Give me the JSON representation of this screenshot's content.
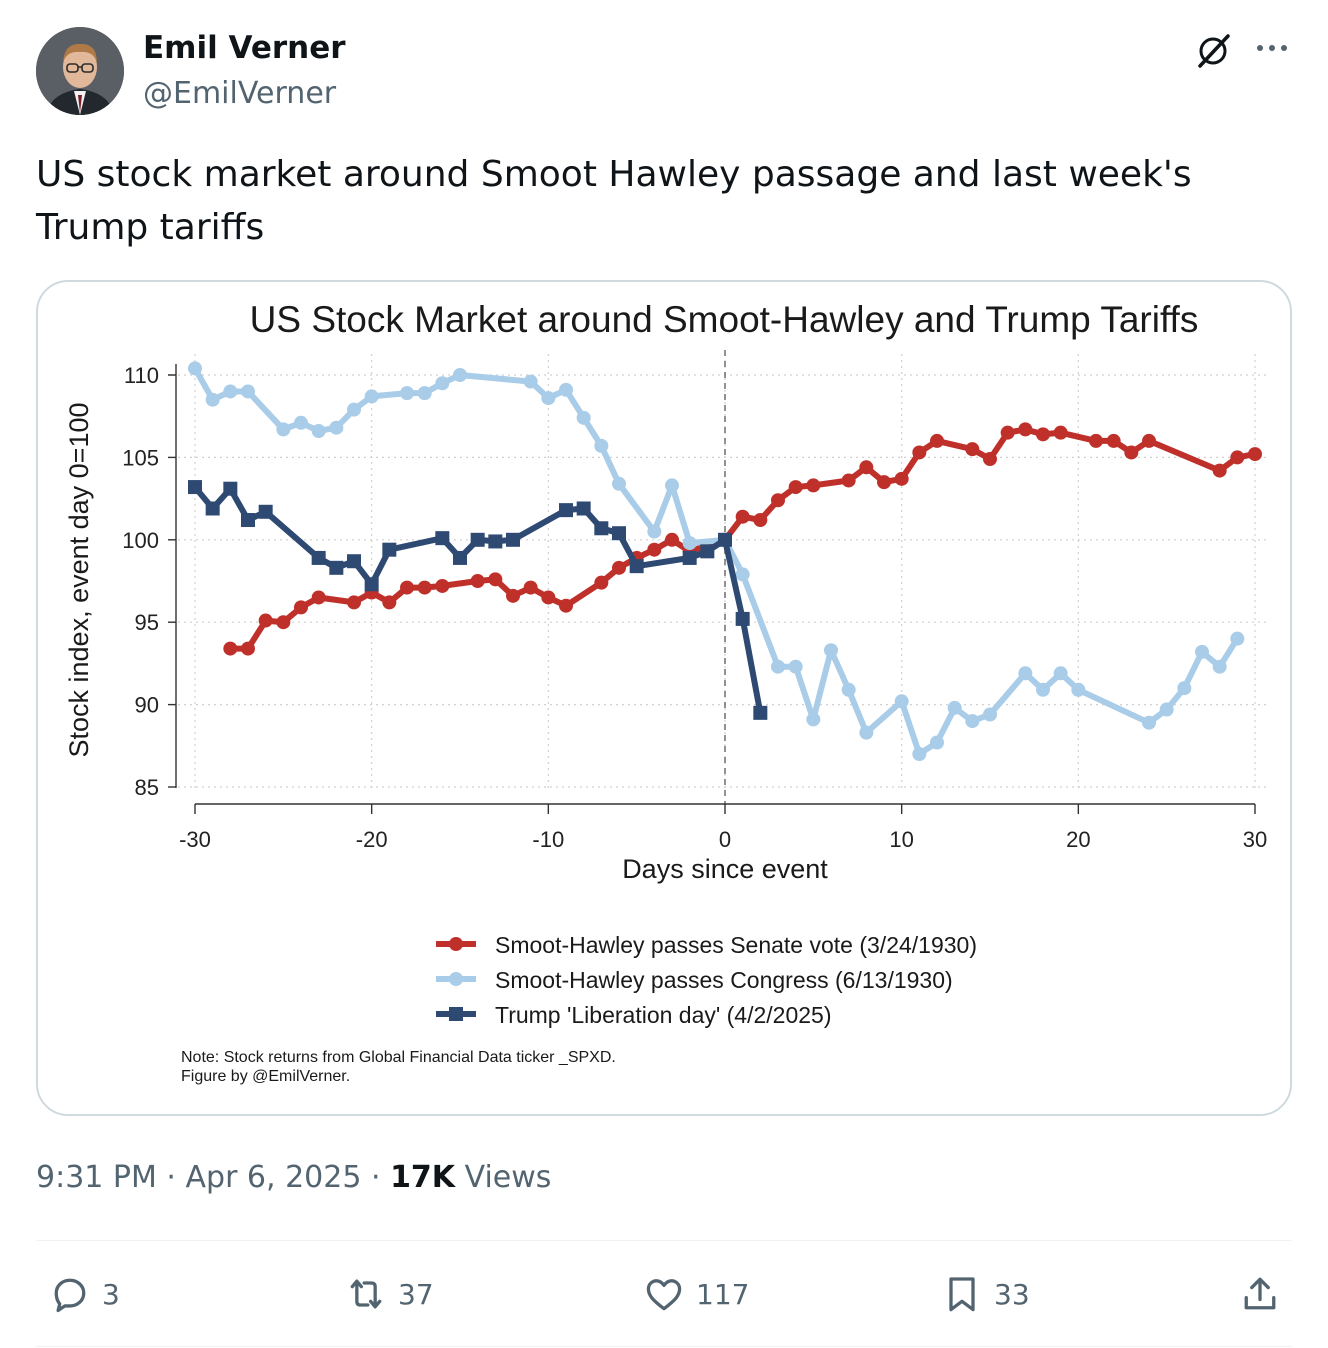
{
  "author": {
    "name": "Emil Verner",
    "handle": "@EmilVerner"
  },
  "tweet": {
    "text": "US stock market around Smoot Hawley passage and last week's Trump tariffs"
  },
  "meta": {
    "time": "9:31 PM",
    "sep1": " · ",
    "date": "Apr 6, 2025",
    "sep2": " · ",
    "views_count": "17K",
    "views_label": " Views"
  },
  "actions": {
    "replies": "3",
    "reposts": "37",
    "likes": "117",
    "bookmarks": "33"
  },
  "icons": [
    "grok-icon",
    "more-icon",
    "reply-icon",
    "repost-icon",
    "like-icon",
    "bookmark-icon",
    "share-icon"
  ],
  "colors": {
    "red_series": "#c0302b",
    "light_blue_series": "#a9cce8",
    "navy_series": "#2e4a73",
    "text_secondary": "#536471"
  },
  "chart_data": {
    "type": "line",
    "title": "US Stock Market around Smoot-Hawley and Trump Tariffs",
    "xlabel": "Days since event",
    "ylabel": "Stock index, event day 0=100",
    "xlim": [
      -30,
      30
    ],
    "ylim": [
      85,
      110
    ],
    "xticks": [
      -30,
      -20,
      -10,
      0,
      10,
      20,
      30
    ],
    "xtick_labels": [
      "-30",
      "-20",
      "-10",
      "0",
      "10",
      "20",
      "30"
    ],
    "yticks": [
      85,
      90,
      95,
      100,
      105,
      110
    ],
    "ytick_labels": [
      "85",
      "90",
      "95",
      "100",
      "105",
      "110"
    ],
    "grid": true,
    "vline_x": 0,
    "legend_position": "bottom",
    "series": [
      {
        "name": "Smoot-Hawley passes Senate vote (3/24/1930)",
        "color": "#c0302b",
        "marker": "circle",
        "x": [
          -28,
          -27,
          -26,
          -25,
          -24,
          -23,
          -21,
          -20,
          -19,
          -18,
          -17,
          -16,
          -14,
          -13,
          -12,
          -11,
          -10,
          -9,
          -7,
          -6,
          -5,
          -4,
          -3,
          -2,
          0,
          1,
          2,
          3,
          4,
          5,
          7,
          8,
          9,
          10,
          11,
          12,
          14,
          15,
          16,
          17,
          18,
          19,
          21,
          22,
          23,
          24,
          28,
          29,
          30
        ],
        "y": [
          93.4,
          93.4,
          95.1,
          95.0,
          95.9,
          96.5,
          96.2,
          96.8,
          96.2,
          97.1,
          97.1,
          97.2,
          97.5,
          97.6,
          96.6,
          97.1,
          96.5,
          96.0,
          97.4,
          98.3,
          98.9,
          99.4,
          100.0,
          99.3,
          100.0,
          101.4,
          101.2,
          102.4,
          103.2,
          103.3,
          103.6,
          104.4,
          103.5,
          103.7,
          105.3,
          106.0,
          105.5,
          104.9,
          106.5,
          106.7,
          106.4,
          106.5,
          106.0,
          106.0,
          105.3,
          106.0,
          104.2,
          105.0,
          105.2
        ]
      },
      {
        "name": "Smoot-Hawley passes Congress (6/13/1930)",
        "color": "#a9cce8",
        "marker": "circle",
        "x": [
          -30,
          -29,
          -28,
          -27,
          -25,
          -24,
          -23,
          -22,
          -21,
          -20,
          -18,
          -17,
          -16,
          -15,
          -11,
          -10,
          -9,
          -8,
          -7,
          -6,
          -4,
          -3,
          -2,
          0,
          1,
          3,
          4,
          5,
          6,
          7,
          8,
          10,
          11,
          12,
          13,
          14,
          15,
          17,
          18,
          19,
          20,
          24,
          25,
          26,
          27,
          28,
          29
        ],
        "y": [
          110.4,
          108.5,
          109.0,
          109.0,
          106.7,
          107.1,
          106.6,
          106.8,
          107.9,
          108.7,
          108.9,
          108.9,
          109.5,
          110.0,
          109.6,
          108.6,
          109.1,
          107.4,
          105.7,
          103.4,
          100.5,
          103.3,
          99.8,
          100.0,
          97.9,
          92.3,
          92.3,
          89.1,
          93.3,
          90.9,
          88.3,
          90.2,
          87.0,
          87.7,
          89.8,
          89.0,
          89.4,
          91.9,
          90.9,
          91.9,
          90.9,
          88.9,
          89.7,
          91.0,
          93.2,
          92.3,
          94.0
        ]
      },
      {
        "name": "Trump 'Liberation day' (4/2/2025)",
        "color": "#2e4a73",
        "marker": "square",
        "x": [
          -30,
          -29,
          -28,
          -27,
          -26,
          -23,
          -22,
          -21,
          -20,
          -19,
          -16,
          -15,
          -14,
          -13,
          -12,
          -9,
          -8,
          -7,
          -6,
          -5,
          -2,
          -1,
          0,
          1,
          2
        ],
        "y": [
          103.2,
          101.9,
          103.1,
          101.2,
          101.7,
          98.9,
          98.3,
          98.7,
          97.3,
          99.4,
          100.1,
          98.9,
          100.0,
          99.9,
          100.0,
          101.8,
          101.9,
          100.7,
          100.4,
          98.4,
          98.9,
          99.3,
          100.0,
          95.2,
          89.5
        ]
      }
    ],
    "note_lines": [
      "Note: Stock returns from Global Financial Data ticker _SPXD.",
      "Figure by @EmilVerner."
    ]
  }
}
